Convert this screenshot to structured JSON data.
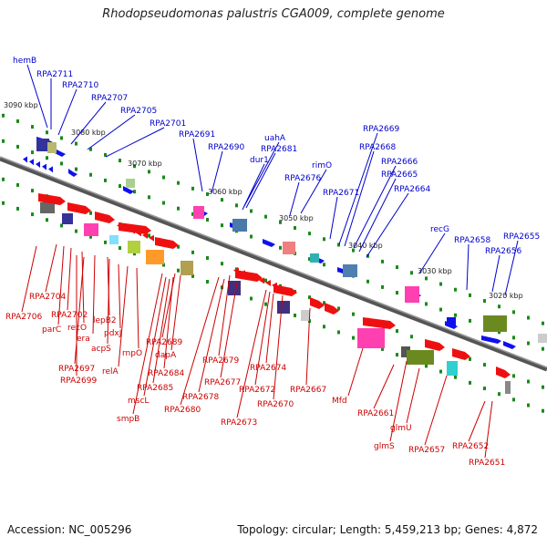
{
  "title": "Rhodopseudomonas palustris CGA009, complete genome",
  "footer": {
    "accession": "Accession: NC_005296",
    "summary": "Topology: circular; Length: 5,459,213 bp; Genes: 4,872"
  },
  "colors": {
    "forward_label": "#0000cc",
    "reverse_label": "#cc0000",
    "backbone": "#777777",
    "tick": "#1a8a1a"
  },
  "kbp_ticks": [
    "3090 kbp",
    "3080 kbp",
    "3070 kbp",
    "3060 kbp",
    "3050 kbp",
    "3040 kbp",
    "3030 kbp",
    "3020 kbp"
  ],
  "top_labels": [
    "hemB",
    "RPA2711",
    "RPA2710",
    "RPA2707",
    "RPA2705",
    "RPA2701",
    "RPA2691",
    "RPA2690",
    "uahA",
    "RPA2681",
    "dur1",
    "rimO",
    "RPA2676",
    "RPA2669",
    "RPA2668",
    "RPA2671",
    "RPA2666",
    "RPA2665",
    "RPA2664",
    "recG",
    "RPA2658",
    "RPA2655",
    "RPA2656"
  ],
  "bottom_labels": [
    "RPA2704",
    "RPA2706",
    "RPA2702",
    "recO",
    "parC",
    "lepB2",
    "era",
    "pdxJ",
    "acpS",
    "rnpO",
    "RPA2697",
    "relA",
    "RPA2699",
    "RPA2689",
    "dapA",
    "RPA2684",
    "RPA2685",
    "mscL",
    "smpB",
    "RPA2679",
    "RPA2677",
    "RPA2678",
    "RPA2680",
    "RPA2674",
    "RPA2672",
    "RPA2673",
    "RPA2670",
    "RPA2667",
    "Mfd",
    "RPA2661",
    "glmU",
    "glmS",
    "RPA2657",
    "RPA2652",
    "RPA2651"
  ]
}
